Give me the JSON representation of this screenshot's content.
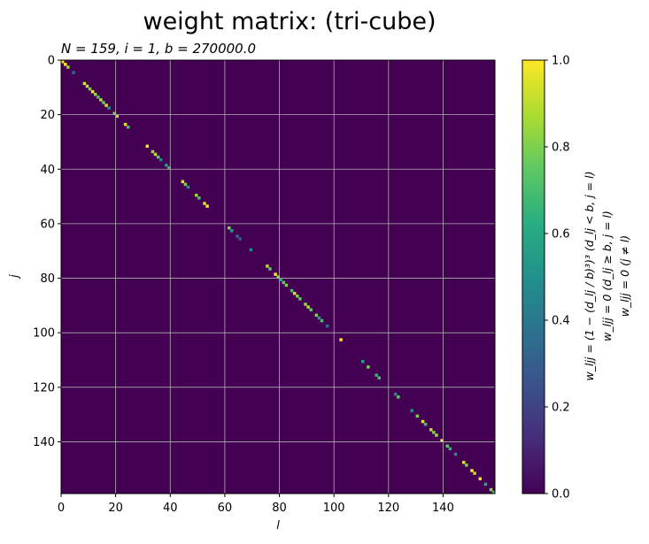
{
  "chart_data": {
    "type": "heatmap",
    "title": "weight matrix: (tri-cube)",
    "subtitle": "N = 159, i = 1, b = 270000.0",
    "xlabel": "l",
    "ylabel": "j",
    "n": 159,
    "xlim": [
      0,
      159
    ],
    "ylim": [
      159,
      0
    ],
    "x_ticks": [
      0,
      20,
      40,
      60,
      80,
      100,
      120,
      140
    ],
    "y_ticks": [
      0,
      20,
      40,
      60,
      80,
      100,
      120,
      140
    ],
    "grid": true,
    "colormap": "viridis",
    "colorbar": {
      "range": [
        0,
        1
      ],
      "ticks": [
        "0.0",
        "0.2",
        "0.4",
        "0.6",
        "0.8",
        "1.0"
      ],
      "label_lines": [
        "w_ljj = (1 − (d_lj / b)³)³  (d_lj < b, j = l)",
        "w_ljj = 0  (d_lj ≥ b, j = l)",
        "w_ljj = 0  (j ≠ l)"
      ]
    },
    "off_diagonal_value": 0.0,
    "diagonal": [
      {
        "index": 0,
        "value": 1.0
      },
      {
        "index": 1,
        "value": 1.0
      },
      {
        "index": 2,
        "value": 0.85
      },
      {
        "index": 4,
        "value": 0.35
      },
      {
        "index": 8,
        "value": 0.95
      },
      {
        "index": 9,
        "value": 0.9
      },
      {
        "index": 10,
        "value": 0.8
      },
      {
        "index": 11,
        "value": 1.0
      },
      {
        "index": 12,
        "value": 0.85
      },
      {
        "index": 13,
        "value": 0.7
      },
      {
        "index": 14,
        "value": 0.9
      },
      {
        "index": 15,
        "value": 0.75
      },
      {
        "index": 16,
        "value": 0.95
      },
      {
        "index": 17,
        "value": 0.5
      },
      {
        "index": 19,
        "value": 0.8
      },
      {
        "index": 20,
        "value": 0.9
      },
      {
        "index": 23,
        "value": 0.95
      },
      {
        "index": 24,
        "value": 0.7
      },
      {
        "index": 31,
        "value": 1.0
      },
      {
        "index": 33,
        "value": 0.85
      },
      {
        "index": 34,
        "value": 0.9
      },
      {
        "index": 35,
        "value": 0.75
      },
      {
        "index": 36,
        "value": 0.45
      },
      {
        "index": 38,
        "value": 0.55
      },
      {
        "index": 39,
        "value": 0.7
      },
      {
        "index": 44,
        "value": 0.95
      },
      {
        "index": 45,
        "value": 0.8
      },
      {
        "index": 46,
        "value": 0.5
      },
      {
        "index": 49,
        "value": 0.85
      },
      {
        "index": 50,
        "value": 0.7
      },
      {
        "index": 52,
        "value": 0.95
      },
      {
        "index": 53,
        "value": 1.0
      },
      {
        "index": 61,
        "value": 0.8
      },
      {
        "index": 62,
        "value": 0.55
      },
      {
        "index": 64,
        "value": 0.35
      },
      {
        "index": 65,
        "value": 0.3
      },
      {
        "index": 69,
        "value": 0.45
      },
      {
        "index": 75,
        "value": 0.9
      },
      {
        "index": 76,
        "value": 0.75
      },
      {
        "index": 78,
        "value": 1.0
      },
      {
        "index": 79,
        "value": 0.85
      },
      {
        "index": 80,
        "value": 0.6
      },
      {
        "index": 81,
        "value": 0.75
      },
      {
        "index": 82,
        "value": 0.8
      },
      {
        "index": 84,
        "value": 0.7
      },
      {
        "index": 85,
        "value": 0.95
      },
      {
        "index": 86,
        "value": 0.8
      },
      {
        "index": 87,
        "value": 0.75
      },
      {
        "index": 89,
        "value": 0.85
      },
      {
        "index": 90,
        "value": 0.9
      },
      {
        "index": 91,
        "value": 0.75
      },
      {
        "index": 93,
        "value": 0.8
      },
      {
        "index": 94,
        "value": 0.55
      },
      {
        "index": 95,
        "value": 0.7
      },
      {
        "index": 97,
        "value": 0.35
      },
      {
        "index": 102,
        "value": 1.0
      },
      {
        "index": 110,
        "value": 0.55
      },
      {
        "index": 112,
        "value": 0.8
      },
      {
        "index": 115,
        "value": 0.65
      },
      {
        "index": 116,
        "value": 0.7
      },
      {
        "index": 122,
        "value": 0.45
      },
      {
        "index": 123,
        "value": 0.75
      },
      {
        "index": 128,
        "value": 0.5
      },
      {
        "index": 130,
        "value": 0.8
      },
      {
        "index": 132,
        "value": 0.95
      },
      {
        "index": 133,
        "value": 0.7
      },
      {
        "index": 135,
        "value": 0.9
      },
      {
        "index": 136,
        "value": 0.8
      },
      {
        "index": 137,
        "value": 0.85
      },
      {
        "index": 139,
        "value": 1.0
      },
      {
        "index": 141,
        "value": 0.75
      },
      {
        "index": 142,
        "value": 0.65
      },
      {
        "index": 144,
        "value": 0.5
      },
      {
        "index": 147,
        "value": 0.95
      },
      {
        "index": 148,
        "value": 0.8
      },
      {
        "index": 150,
        "value": 1.0
      },
      {
        "index": 151,
        "value": 0.9
      },
      {
        "index": 153,
        "value": 1.0
      },
      {
        "index": 155,
        "value": 0.6
      },
      {
        "index": 157,
        "value": 0.85
      },
      {
        "index": 158,
        "value": 0.7
      }
    ]
  }
}
